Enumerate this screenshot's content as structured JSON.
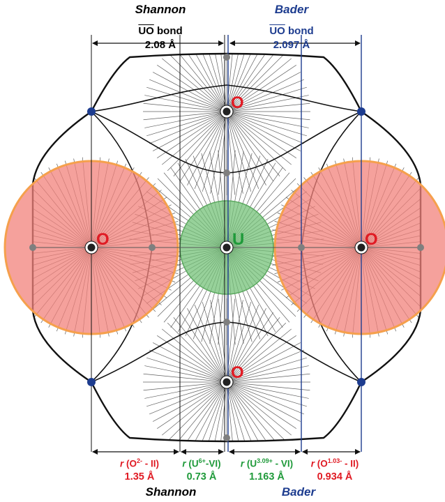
{
  "colors": {
    "shannon": "#111111",
    "bader": "#1d3c8f",
    "oxygen_sphere": "#f2817b",
    "oxygen_rim": "#f5a04c",
    "uranium_sphere": "#74c278",
    "oxygen_label": "#e01b24",
    "uranium_label": "#1f9a3a",
    "value_red": "#e01b24",
    "value_green": "#1f9a3a",
    "basin_lines": "#444444",
    "basin_boundary": "#111111",
    "ncp_blue": "#1d3c8f",
    "ncp_grey": "#7f7f7f"
  },
  "header": {
    "shannon_title": "Shannon",
    "bader_title": "Bader",
    "shannon_bond": {
      "bar": "UO",
      "suffix": " bond",
      "value": "2.08 Å"
    },
    "bader_bond": {
      "bar": "UO",
      "suffix": " bond",
      "value": "2.097 Å"
    }
  },
  "atoms": {
    "center": "U",
    "top": "O",
    "bottom": "O",
    "left": "O",
    "right": "O"
  },
  "radii": {
    "o_shannon": {
      "prefix": "r",
      "label": "(O",
      "sup": "2-",
      "suffix": " - II)",
      "value": "1.35 Å"
    },
    "u_shannon": {
      "prefix": "r",
      "label": "(U",
      "sup": "6+",
      "suffix": "-VI)",
      "value": "0.73 Å"
    },
    "u_bader": {
      "prefix": "r",
      "label": "(U",
      "sup": "3.09+",
      "suffix": " - VI)",
      "value": "1.163 Å"
    },
    "o_bader": {
      "prefix": "r",
      "label": "(O",
      "sup": "1.03-",
      "suffix": " - II)",
      "value": "0.934 Å"
    }
  },
  "footer": {
    "shannon_title": "Shannon",
    "bader_title": "Bader"
  }
}
